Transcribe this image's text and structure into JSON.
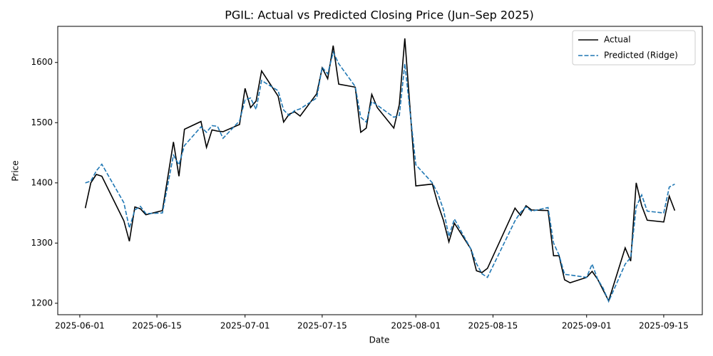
{
  "chart_data": {
    "type": "line",
    "title": "PGIL: Actual vs Predicted Closing Price (Jun–Sep 2025)",
    "xlabel": "Date",
    "ylabel": "Price",
    "x": [
      "2025-06-02",
      "2025-06-03",
      "2025-06-04",
      "2025-06-05",
      "2025-06-09",
      "2025-06-10",
      "2025-06-11",
      "2025-06-12",
      "2025-06-13",
      "2025-06-16",
      "2025-06-18",
      "2025-06-19",
      "2025-06-20",
      "2025-06-23",
      "2025-06-24",
      "2025-06-25",
      "2025-06-26",
      "2025-06-27",
      "2025-06-30",
      "2025-07-01",
      "2025-07-02",
      "2025-07-03",
      "2025-07-04",
      "2025-07-07",
      "2025-07-08",
      "2025-07-09",
      "2025-07-10",
      "2025-07-11",
      "2025-07-14",
      "2025-07-15",
      "2025-07-16",
      "2025-07-17",
      "2025-07-18",
      "2025-07-21",
      "2025-07-22",
      "2025-07-23",
      "2025-07-24",
      "2025-07-25",
      "2025-07-28",
      "2025-07-29",
      "2025-07-30",
      "2025-08-01",
      "2025-08-04",
      "2025-08-05",
      "2025-08-06",
      "2025-08-07",
      "2025-08-08",
      "2025-08-11",
      "2025-08-12",
      "2025-08-13",
      "2025-08-14",
      "2025-08-19",
      "2025-08-20",
      "2025-08-21",
      "2025-08-22",
      "2025-08-25",
      "2025-08-26",
      "2025-08-27",
      "2025-08-28",
      "2025-08-29",
      "2025-09-01",
      "2025-09-02",
      "2025-09-03",
      "2025-09-04",
      "2025-09-05",
      "2025-09-08",
      "2025-09-09",
      "2025-09-10",
      "2025-09-11",
      "2025-09-12",
      "2025-09-15",
      "2025-09-16",
      "2025-09-17"
    ],
    "series": [
      {
        "name": "Actual",
        "color": "#000000",
        "dash": false,
        "values": [
          1358,
          1400,
          1414,
          1411,
          1337,
          1303,
          1360,
          1357,
          1347,
          1354,
          1468,
          1411,
          1489,
          1502,
          1459,
          1488,
          1486,
          1485,
          1497,
          1557,
          1525,
          1536,
          1586,
          1544,
          1501,
          1514,
          1518,
          1511,
          1548,
          1591,
          1573,
          1628,
          1564,
          1559,
          1484,
          1491,
          1547,
          1525,
          1491,
          1530,
          1640,
          1395,
          1398,
          1365,
          1338,
          1302,
          1333,
          1290,
          1254,
          1251,
          1258,
          1358,
          1346,
          1362,
          1355,
          1354,
          1279,
          1279,
          1239,
          1234,
          1243,
          1253,
          1240,
          1222,
          1204,
          1292,
          1270,
          1400,
          1362,
          1338,
          1335,
          1378,
          1354
        ]
      },
      {
        "name": "Predicted (Ridge)",
        "color": "#1f77b4",
        "dash": true,
        "values": [
          1400,
          1403,
          1420,
          1431,
          1367,
          1325,
          1355,
          1361,
          1349,
          1350,
          1446,
          1430,
          1462,
          1493,
          1484,
          1495,
          1494,
          1474,
          1503,
          1538,
          1541,
          1522,
          1570,
          1553,
          1521,
          1512,
          1520,
          1523,
          1541,
          1592,
          1581,
          1617,
          1598,
          1560,
          1509,
          1501,
          1535,
          1529,
          1509,
          1512,
          1598,
          1430,
          1400,
          1382,
          1356,
          1311,
          1340,
          1290,
          1266,
          1249,
          1243,
          1337,
          1351,
          1360,
          1353,
          1359,
          1300,
          1280,
          1248,
          1247,
          1243,
          1265,
          1240,
          1225,
          1203,
          1265,
          1276,
          1360,
          1380,
          1353,
          1350,
          1393,
          1398
        ]
      }
    ],
    "xlim": [
      "2025-05-28",
      "2025-09-22"
    ],
    "xticks": [
      "2025-06-01",
      "2025-06-15",
      "2025-07-01",
      "2025-07-15",
      "2025-08-01",
      "2025-08-15",
      "2025-09-01",
      "2025-09-15"
    ],
    "ylim": [
      1181,
      1660
    ],
    "yticks": [
      1200,
      1300,
      1400,
      1500,
      1600
    ],
    "legend": "upper right",
    "grid": false
  }
}
